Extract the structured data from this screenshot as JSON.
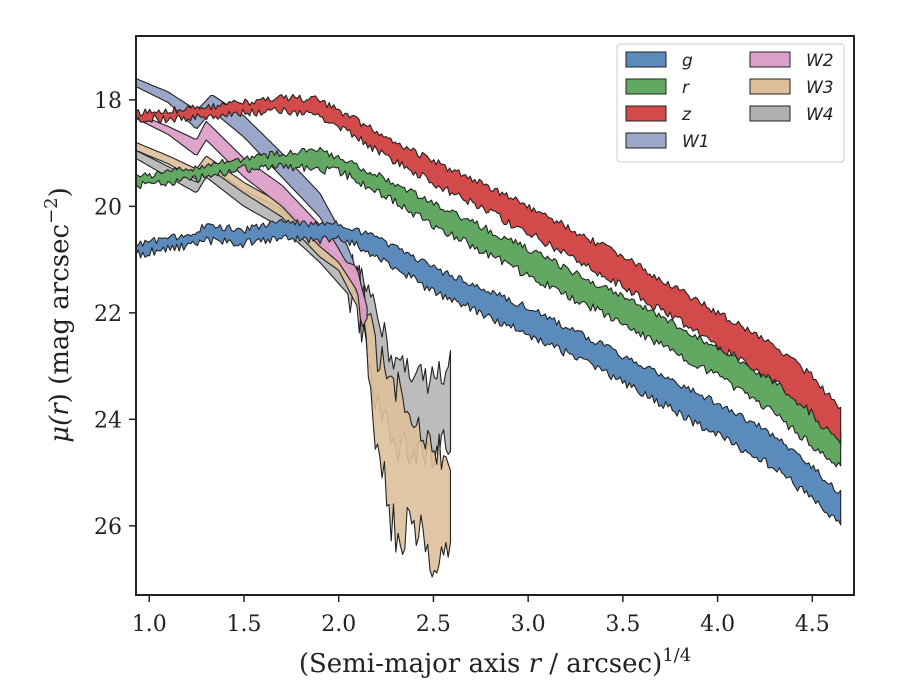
{
  "chart_data": {
    "type": "area",
    "xlabel_main": "(Semi-major axis ",
    "xlabel_var": "r",
    "xlabel_tail": " / arcsec)",
    "xlabel_exp": "1/4",
    "ylabel_mu": "μ(",
    "ylabel_var": "r",
    "ylabel_unit": ") (mag arcsec",
    "ylabel_exp": "−2",
    "ylabel_close": ")",
    "xlim": [
      0.93,
      4.72
    ],
    "ylim": [
      27.3,
      16.8
    ],
    "y_inverted": true,
    "grid": false,
    "legend_position": "top-right",
    "legend_columns": 2,
    "x_ticks": [
      {
        "v": 1.0,
        "label": "1.0"
      },
      {
        "v": 1.5,
        "label": "1.5"
      },
      {
        "v": 2.0,
        "label": "2.0"
      },
      {
        "v": 2.5,
        "label": "2.5"
      },
      {
        "v": 3.0,
        "label": "3.0"
      },
      {
        "v": 3.5,
        "label": "3.5"
      },
      {
        "v": 4.0,
        "label": "4.0"
      },
      {
        "v": 4.5,
        "label": "4.5"
      }
    ],
    "y_ticks": [
      {
        "v": 18,
        "label": "18"
      },
      {
        "v": 20,
        "label": "20"
      },
      {
        "v": 22,
        "label": "22"
      },
      {
        "v": 24,
        "label": "24"
      },
      {
        "v": 26,
        "label": "26"
      }
    ],
    "series": [
      {
        "name": "W4",
        "color": "#b0b0b0",
        "opacity": 0.85,
        "noisy_after": 2.05,
        "noise": 0.6,
        "upper": [
          [
            0.93,
            18.95
          ],
          [
            1.1,
            19.25
          ],
          [
            1.25,
            19.55
          ],
          [
            1.3,
            19.2
          ],
          [
            1.5,
            19.7
          ],
          [
            1.7,
            20.05
          ],
          [
            1.9,
            20.75
          ],
          [
            2.0,
            21.05
          ],
          [
            2.1,
            21.2
          ],
          [
            2.2,
            22.1
          ],
          [
            2.3,
            22.9
          ],
          [
            2.4,
            23.1
          ],
          [
            2.5,
            23.3
          ],
          [
            2.59,
            22.9
          ]
        ],
        "lower": [
          [
            0.93,
            19.1
          ],
          [
            1.1,
            19.45
          ],
          [
            1.25,
            19.75
          ],
          [
            1.3,
            19.45
          ],
          [
            1.5,
            20.0
          ],
          [
            1.7,
            20.4
          ],
          [
            1.9,
            21.05
          ],
          [
            2.0,
            21.45
          ],
          [
            2.1,
            21.85
          ],
          [
            2.2,
            23.7
          ],
          [
            2.3,
            24.6
          ],
          [
            2.4,
            24.5
          ],
          [
            2.5,
            24.6
          ],
          [
            2.59,
            24.4
          ]
        ]
      },
      {
        "name": "W3",
        "color": "#ddc09a",
        "opacity": 0.9,
        "noisy_after": 2.1,
        "noise": 0.8,
        "upper": [
          [
            0.93,
            18.8
          ],
          [
            1.1,
            19.05
          ],
          [
            1.25,
            19.3
          ],
          [
            1.3,
            19.05
          ],
          [
            1.5,
            19.55
          ],
          [
            1.7,
            19.95
          ],
          [
            1.9,
            20.65
          ],
          [
            2.0,
            20.95
          ],
          [
            2.1,
            21.3
          ],
          [
            2.15,
            21.9
          ],
          [
            2.2,
            22.8
          ],
          [
            2.3,
            23.4
          ],
          [
            2.4,
            24.2
          ],
          [
            2.5,
            24.6
          ],
          [
            2.59,
            24.6
          ]
        ],
        "lower": [
          [
            0.93,
            18.95
          ],
          [
            1.1,
            19.2
          ],
          [
            1.25,
            19.5
          ],
          [
            1.3,
            19.25
          ],
          [
            1.5,
            19.75
          ],
          [
            1.7,
            20.2
          ],
          [
            1.9,
            20.95
          ],
          [
            2.0,
            21.2
          ],
          [
            2.1,
            21.9
          ],
          [
            2.15,
            22.8
          ],
          [
            2.2,
            24.6
          ],
          [
            2.3,
            26.2
          ],
          [
            2.4,
            26.0
          ],
          [
            2.5,
            26.7
          ],
          [
            2.59,
            26.5
          ]
        ]
      },
      {
        "name": "W2",
        "color": "#dc9fc9",
        "opacity": 0.95,
        "noisy_after": 9,
        "noise": 0,
        "upper": [
          [
            0.93,
            18.25
          ],
          [
            1.1,
            18.5
          ],
          [
            1.25,
            18.75
          ],
          [
            1.3,
            18.4
          ],
          [
            1.5,
            19.1
          ],
          [
            1.7,
            19.6
          ],
          [
            1.9,
            20.35
          ],
          [
            2.0,
            20.65
          ],
          [
            2.1,
            21.2
          ],
          [
            2.12,
            21.5
          ],
          [
            2.15,
            21.9
          ]
        ],
        "lower": [
          [
            0.93,
            18.35
          ],
          [
            1.1,
            18.65
          ],
          [
            1.25,
            19.05
          ],
          [
            1.3,
            18.75
          ],
          [
            1.5,
            19.45
          ],
          [
            1.7,
            20.0
          ],
          [
            1.9,
            20.75
          ],
          [
            2.0,
            21.05
          ],
          [
            2.1,
            21.6
          ],
          [
            2.12,
            22.3
          ],
          [
            2.15,
            22.1
          ]
        ]
      },
      {
        "name": "W1",
        "color": "#9aa7c8",
        "opacity": 1.0,
        "noisy_after": 9,
        "noise": 0,
        "upper": [
          [
            0.93,
            17.6
          ],
          [
            1.1,
            17.85
          ],
          [
            1.25,
            18.2
          ],
          [
            1.33,
            17.9
          ],
          [
            1.5,
            18.3
          ],
          [
            1.7,
            19.0
          ],
          [
            1.9,
            19.75
          ],
          [
            2.0,
            20.4
          ],
          [
            2.04,
            20.7
          ],
          [
            2.08,
            21.05
          ]
        ],
        "lower": [
          [
            0.93,
            17.75
          ],
          [
            1.1,
            18.05
          ],
          [
            1.25,
            18.55
          ],
          [
            1.33,
            18.2
          ],
          [
            1.5,
            18.7
          ],
          [
            1.7,
            19.45
          ],
          [
            1.9,
            20.2
          ],
          [
            2.0,
            20.8
          ],
          [
            2.04,
            21.05
          ],
          [
            2.08,
            21.1
          ]
        ]
      },
      {
        "name": "g",
        "color": "#5a8bbb",
        "opacity": 1.0,
        "noisy_after": 0,
        "noise": 0.14,
        "upper": [
          [
            0.93,
            20.7
          ],
          [
            1.2,
            20.55
          ],
          [
            1.3,
            20.35
          ],
          [
            1.5,
            20.45
          ],
          [
            1.7,
            20.25
          ],
          [
            1.9,
            20.35
          ],
          [
            2.0,
            20.3
          ],
          [
            2.2,
            20.6
          ],
          [
            2.5,
            21.15
          ],
          [
            3.0,
            21.9
          ],
          [
            3.5,
            22.8
          ],
          [
            4.0,
            23.7
          ],
          [
            4.3,
            24.3
          ],
          [
            4.5,
            24.9
          ],
          [
            4.65,
            25.4
          ]
        ],
        "lower": [
          [
            0.93,
            20.9
          ],
          [
            1.2,
            20.75
          ],
          [
            1.3,
            20.65
          ],
          [
            1.5,
            20.7
          ],
          [
            1.7,
            20.6
          ],
          [
            1.9,
            20.65
          ],
          [
            2.0,
            20.55
          ],
          [
            2.2,
            20.95
          ],
          [
            2.5,
            21.6
          ],
          [
            3.0,
            22.4
          ],
          [
            3.5,
            23.3
          ],
          [
            4.0,
            24.3
          ],
          [
            4.3,
            24.9
          ],
          [
            4.5,
            25.5
          ],
          [
            4.65,
            26.0
          ]
        ]
      },
      {
        "name": "r",
        "color": "#62a862",
        "opacity": 1.0,
        "noisy_after": 0,
        "noise": 0.14,
        "upper": [
          [
            0.93,
            19.45
          ],
          [
            1.1,
            19.35
          ],
          [
            1.3,
            19.25
          ],
          [
            1.5,
            19.1
          ],
          [
            1.7,
            19.0
          ],
          [
            1.9,
            18.95
          ],
          [
            2.0,
            19.1
          ],
          [
            2.2,
            19.4
          ],
          [
            2.5,
            19.95
          ],
          [
            3.0,
            20.8
          ],
          [
            3.5,
            21.7
          ],
          [
            4.0,
            22.65
          ],
          [
            4.3,
            23.3
          ],
          [
            4.5,
            23.8
          ],
          [
            4.65,
            24.2
          ]
        ],
        "lower": [
          [
            0.93,
            19.6
          ],
          [
            1.1,
            19.55
          ],
          [
            1.3,
            19.45
          ],
          [
            1.5,
            19.3
          ],
          [
            1.7,
            19.25
          ],
          [
            1.9,
            19.3
          ],
          [
            2.0,
            19.35
          ],
          [
            2.2,
            19.7
          ],
          [
            2.5,
            20.35
          ],
          [
            3.0,
            21.3
          ],
          [
            3.5,
            22.2
          ],
          [
            4.0,
            23.2
          ],
          [
            4.3,
            23.9
          ],
          [
            4.5,
            24.5
          ],
          [
            4.65,
            24.9
          ]
        ]
      },
      {
        "name": "z",
        "color": "#d24a4a",
        "opacity": 1.0,
        "noisy_after": 0,
        "noise": 0.14,
        "upper": [
          [
            0.93,
            18.25
          ],
          [
            1.1,
            18.2
          ],
          [
            1.3,
            18.15
          ],
          [
            1.5,
            18.05
          ],
          [
            1.7,
            17.95
          ],
          [
            1.9,
            18.0
          ],
          [
            2.0,
            18.2
          ],
          [
            2.2,
            18.6
          ],
          [
            2.5,
            19.15
          ],
          [
            3.0,
            20.0
          ],
          [
            3.5,
            20.95
          ],
          [
            4.0,
            22.0
          ],
          [
            4.3,
            22.6
          ],
          [
            4.5,
            23.2
          ],
          [
            4.65,
            23.8
          ]
        ],
        "lower": [
          [
            0.93,
            18.35
          ],
          [
            1.1,
            18.35
          ],
          [
            1.3,
            18.3
          ],
          [
            1.5,
            18.25
          ],
          [
            1.7,
            18.2
          ],
          [
            1.9,
            18.3
          ],
          [
            2.0,
            18.5
          ],
          [
            2.2,
            18.95
          ],
          [
            2.5,
            19.55
          ],
          [
            3.0,
            20.5
          ],
          [
            3.5,
            21.5
          ],
          [
            4.0,
            22.6
          ],
          [
            4.3,
            23.3
          ],
          [
            4.5,
            23.9
          ],
          [
            4.65,
            24.5
          ]
        ]
      }
    ],
    "legend": [
      {
        "label": "g",
        "color": "#5a8bbb"
      },
      {
        "label": "r",
        "color": "#62a862"
      },
      {
        "label": "z",
        "color": "#d24a4a"
      },
      {
        "label": "W1",
        "color": "#9aa7c8"
      },
      {
        "label": "W2",
        "color": "#dc9fc9"
      },
      {
        "label": "W3",
        "color": "#ddc09a"
      },
      {
        "label": "W4",
        "color": "#b0b0b0"
      }
    ]
  }
}
